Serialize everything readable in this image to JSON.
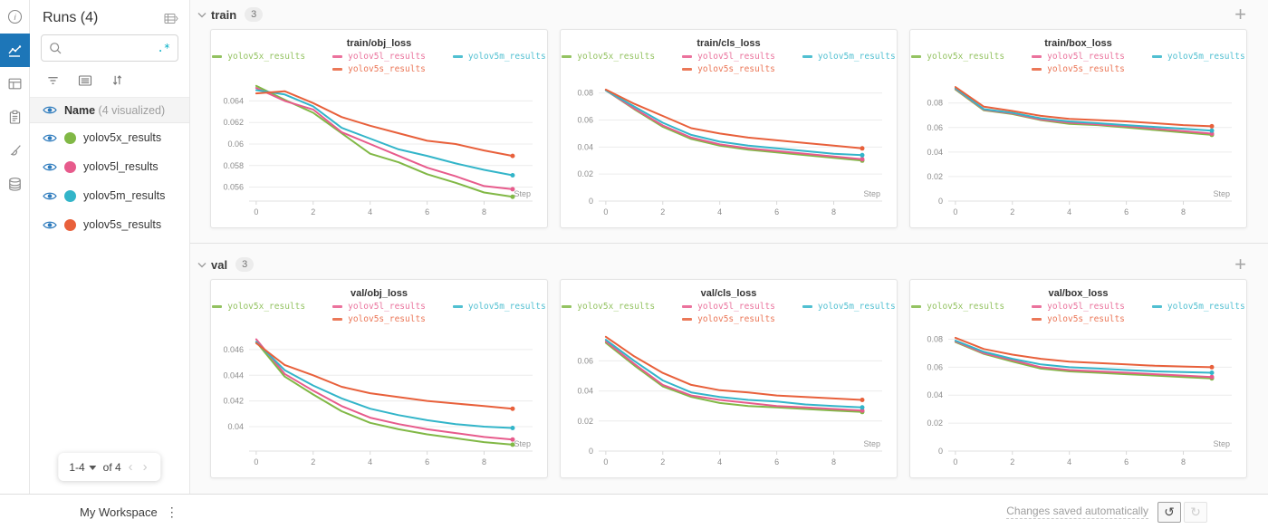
{
  "colors": {
    "accent_blue": "#1d76b8",
    "eye_blue": "#2e7bbd",
    "regex_teal": "#00aec5",
    "grid_line": "#ececec",
    "axis_line": "#e2e2e2",
    "tick_text": "#8c8c8c"
  },
  "nav_rail": {
    "items": [
      {
        "name": "info-icon",
        "active": false
      },
      {
        "name": "line-chart-icon",
        "active": true
      },
      {
        "name": "panels-icon",
        "active": false
      },
      {
        "name": "clipboard-icon",
        "active": false
      },
      {
        "name": "brush-icon",
        "active": false
      },
      {
        "name": "database-icon",
        "active": false
      }
    ]
  },
  "runs_panel": {
    "title": "Runs (4)",
    "search_placeholder": "",
    "regex_label": ".*",
    "header": {
      "name_label": "Name",
      "visualized_label": "(4 visualized)"
    },
    "runs": [
      {
        "label": "yolov5x_results",
        "color": "#81b846"
      },
      {
        "label": "yolov5l_results",
        "color": "#e75b8c"
      },
      {
        "label": "yolov5m_results",
        "color": "#33b5c9"
      },
      {
        "label": "yolov5s_results",
        "color": "#e8603b"
      }
    ],
    "pagination": {
      "range_label": "1-4",
      "of_label": "of 4",
      "prev_label": "‹",
      "next_label": "›"
    }
  },
  "sections": [
    {
      "label": "train",
      "badge": "3",
      "chart_indexes": [
        0,
        1,
        2
      ]
    },
    {
      "label": "val",
      "badge": "3",
      "chart_indexes": [
        3,
        4,
        5
      ]
    }
  ],
  "footer": {
    "workspace_label": "My Workspace",
    "autosave_label": "Changes saved automatically",
    "undo_icon": "↺",
    "redo_icon": "↻"
  },
  "chart_data": [
    {
      "type": "line",
      "title": "train/obj_loss",
      "xlabel": "Step",
      "x": [
        0,
        1,
        2,
        3,
        4,
        5,
        6,
        7,
        8,
        9
      ],
      "xticks": [
        0,
        2,
        4,
        6,
        8
      ],
      "xlim": [
        -0.25,
        9.7
      ],
      "ylim": [
        0.0547,
        0.0658
      ],
      "yticks": [
        0.056,
        0.058,
        0.06,
        0.062,
        0.064
      ],
      "ytick_labels": [
        "0.056",
        "0.058",
        "0.06",
        "0.062",
        "0.064"
      ],
      "legend_position": "top",
      "series": [
        {
          "name": "yolov5x_results",
          "color": "#81b846",
          "values": [
            0.0654,
            0.0641,
            0.0629,
            0.061,
            0.0591,
            0.0583,
            0.0572,
            0.0564,
            0.0555,
            0.0551
          ]
        },
        {
          "name": "yolov5l_results",
          "color": "#e75b8c",
          "values": [
            0.0652,
            0.064,
            0.0632,
            0.0611,
            0.06,
            0.0589,
            0.0578,
            0.057,
            0.0561,
            0.0558
          ]
        },
        {
          "name": "yolov5m_results",
          "color": "#33b5c9",
          "values": [
            0.065,
            0.0646,
            0.0635,
            0.0615,
            0.0605,
            0.0595,
            0.0589,
            0.0582,
            0.0576,
            0.0571
          ]
        },
        {
          "name": "yolov5s_results",
          "color": "#e8603b",
          "values": [
            0.0647,
            0.0649,
            0.0638,
            0.0625,
            0.0617,
            0.061,
            0.0603,
            0.06,
            0.0594,
            0.0589
          ]
        }
      ]
    },
    {
      "type": "line",
      "title": "train/cls_loss",
      "xlabel": "Step",
      "x": [
        0,
        1,
        2,
        3,
        4,
        5,
        6,
        7,
        8,
        9
      ],
      "xticks": [
        0,
        2,
        4,
        6,
        8
      ],
      "xlim": [
        -0.25,
        9.7
      ],
      "ylim": [
        0,
        0.0885
      ],
      "yticks": [
        0,
        0.02,
        0.04,
        0.06,
        0.08
      ],
      "ytick_labels": [
        "0",
        "0.02",
        "0.04",
        "0.06",
        "0.08"
      ],
      "legend_position": "top",
      "series": [
        {
          "name": "yolov5x_results",
          "color": "#81b846",
          "values": [
            0.082,
            0.068,
            0.055,
            0.046,
            0.041,
            0.038,
            0.036,
            0.034,
            0.032,
            0.03
          ]
        },
        {
          "name": "yolov5l_results",
          "color": "#e75b8c",
          "values": [
            0.082,
            0.0685,
            0.056,
            0.047,
            0.042,
            0.039,
            0.037,
            0.035,
            0.033,
            0.031
          ]
        },
        {
          "name": "yolov5m_results",
          "color": "#33b5c9",
          "values": [
            0.082,
            0.07,
            0.058,
            0.049,
            0.044,
            0.041,
            0.039,
            0.037,
            0.035,
            0.034
          ]
        },
        {
          "name": "yolov5s_results",
          "color": "#e8603b",
          "values": [
            0.0825,
            0.072,
            0.063,
            0.054,
            0.05,
            0.047,
            0.045,
            0.043,
            0.041,
            0.039
          ]
        }
      ]
    },
    {
      "type": "line",
      "title": "train/box_loss",
      "xlabel": "Step",
      "x": [
        0,
        1,
        2,
        3,
        4,
        5,
        6,
        7,
        8,
        9
      ],
      "xticks": [
        0,
        2,
        4,
        6,
        8
      ],
      "xlim": [
        -0.25,
        9.7
      ],
      "ylim": [
        0,
        0.0975
      ],
      "yticks": [
        0,
        0.02,
        0.04,
        0.06,
        0.08
      ],
      "ytick_labels": [
        "0",
        "0.02",
        "0.04",
        "0.06",
        "0.08"
      ],
      "legend_position": "top",
      "series": [
        {
          "name": "yolov5x_results",
          "color": "#81b846",
          "values": [
            0.091,
            0.074,
            0.071,
            0.066,
            0.063,
            0.062,
            0.06,
            0.058,
            0.056,
            0.054
          ]
        },
        {
          "name": "yolov5l_results",
          "color": "#e75b8c",
          "values": [
            0.0915,
            0.0745,
            0.0715,
            0.0665,
            0.064,
            0.0625,
            0.061,
            0.059,
            0.057,
            0.055
          ]
        },
        {
          "name": "yolov5m_results",
          "color": "#33b5c9",
          "values": [
            0.092,
            0.075,
            0.072,
            0.0675,
            0.065,
            0.0635,
            0.062,
            0.0605,
            0.059,
            0.0575
          ]
        },
        {
          "name": "yolov5s_results",
          "color": "#e8603b",
          "values": [
            0.093,
            0.077,
            0.0735,
            0.0695,
            0.067,
            0.066,
            0.065,
            0.0635,
            0.062,
            0.061
          ]
        }
      ]
    },
    {
      "type": "line",
      "title": "val/obj_loss",
      "xlabel": "Step",
      "x": [
        0,
        1,
        2,
        3,
        4,
        5,
        6,
        7,
        8,
        9
      ],
      "xticks": [
        0,
        2,
        4,
        6,
        8
      ],
      "xlim": [
        -0.25,
        9.7
      ],
      "ylim": [
        0.0381,
        0.0474
      ],
      "yticks": [
        0.04,
        0.042,
        0.044,
        0.046
      ],
      "ytick_labels": [
        "0.04",
        "0.042",
        "0.044",
        "0.046"
      ],
      "legend_position": "top",
      "series": [
        {
          "name": "yolov5x_results",
          "color": "#81b846",
          "values": [
            0.0466,
            0.0439,
            0.0425,
            0.0412,
            0.0403,
            0.0398,
            0.0394,
            0.0391,
            0.0388,
            0.0386
          ]
        },
        {
          "name": "yolov5l_results",
          "color": "#e75b8c",
          "values": [
            0.0468,
            0.0441,
            0.0428,
            0.0416,
            0.0407,
            0.0402,
            0.0398,
            0.0395,
            0.0392,
            0.039
          ]
        },
        {
          "name": "yolov5m_results",
          "color": "#33b5c9",
          "values": [
            0.0466,
            0.0444,
            0.0432,
            0.0422,
            0.0414,
            0.0409,
            0.0405,
            0.0402,
            0.04,
            0.0399
          ]
        },
        {
          "name": "yolov5s_results",
          "color": "#e8603b",
          "values": [
            0.0465,
            0.0448,
            0.044,
            0.0431,
            0.0426,
            0.0423,
            0.042,
            0.0418,
            0.0416,
            0.0414
          ]
        }
      ]
    },
    {
      "type": "line",
      "title": "val/cls_loss",
      "xlabel": "Step",
      "x": [
        0,
        1,
        2,
        3,
        4,
        5,
        6,
        7,
        8,
        9
      ],
      "xticks": [
        0,
        2,
        4,
        6,
        8
      ],
      "xlim": [
        -0.25,
        9.7
      ],
      "ylim": [
        0,
        0.0795
      ],
      "yticks": [
        0,
        0.02,
        0.04,
        0.06
      ],
      "ytick_labels": [
        "0",
        "0.02",
        "0.04",
        "0.06"
      ],
      "legend_position": "top",
      "series": [
        {
          "name": "yolov5x_results",
          "color": "#81b846",
          "values": [
            0.072,
            0.057,
            0.043,
            0.036,
            0.032,
            0.03,
            0.029,
            0.028,
            0.027,
            0.026
          ]
        },
        {
          "name": "yolov5l_results",
          "color": "#e75b8c",
          "values": [
            0.073,
            0.058,
            0.044,
            0.037,
            0.034,
            0.032,
            0.03,
            0.029,
            0.028,
            0.027
          ]
        },
        {
          "name": "yolov5m_results",
          "color": "#33b5c9",
          "values": [
            0.074,
            0.06,
            0.047,
            0.039,
            0.036,
            0.034,
            0.033,
            0.031,
            0.03,
            0.029
          ]
        },
        {
          "name": "yolov5s_results",
          "color": "#e8603b",
          "values": [
            0.076,
            0.063,
            0.052,
            0.044,
            0.0405,
            0.039,
            0.037,
            0.036,
            0.035,
            0.034
          ]
        }
      ]
    },
    {
      "type": "line",
      "title": "val/box_loss",
      "xlabel": "Step",
      "x": [
        0,
        1,
        2,
        3,
        4,
        5,
        6,
        7,
        8,
        9
      ],
      "xticks": [
        0,
        2,
        4,
        6,
        8
      ],
      "xlim": [
        -0.25,
        9.7
      ],
      "ylim": [
        0,
        0.0855
      ],
      "yticks": [
        0,
        0.02,
        0.04,
        0.06,
        0.08
      ],
      "ytick_labels": [
        "0",
        "0.02",
        "0.04",
        "0.06",
        "0.08"
      ],
      "legend_position": "top",
      "series": [
        {
          "name": "yolov5x_results",
          "color": "#81b846",
          "values": [
            0.078,
            0.0695,
            0.064,
            0.059,
            0.057,
            0.056,
            0.055,
            0.054,
            0.053,
            0.052
          ]
        },
        {
          "name": "yolov5l_results",
          "color": "#e75b8c",
          "values": [
            0.0785,
            0.07,
            0.065,
            0.06,
            0.058,
            0.057,
            0.056,
            0.055,
            0.054,
            0.053
          ]
        },
        {
          "name": "yolov5m_results",
          "color": "#33b5c9",
          "values": [
            0.079,
            0.071,
            0.066,
            0.062,
            0.06,
            0.059,
            0.058,
            0.057,
            0.0565,
            0.056
          ]
        },
        {
          "name": "yolov5s_results",
          "color": "#e8603b",
          "values": [
            0.081,
            0.073,
            0.069,
            0.066,
            0.064,
            0.063,
            0.062,
            0.061,
            0.0605,
            0.06
          ]
        }
      ]
    }
  ]
}
